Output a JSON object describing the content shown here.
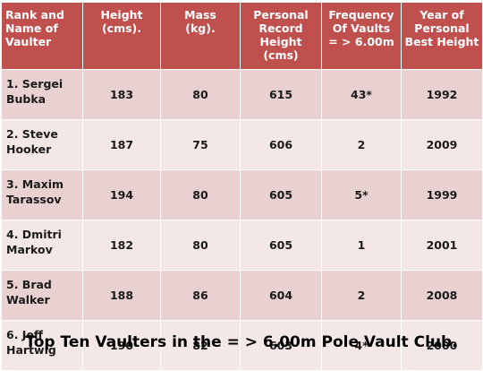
{
  "table": {
    "headers": [
      [
        "Rank and",
        "Name of",
        "Vaulter"
      ],
      [
        "Height",
        "(cms)."
      ],
      [
        "Mass",
        "(kg)."
      ],
      [
        "Personal",
        "Record",
        "Height",
        "(cms)"
      ],
      [
        "Frequency",
        "Of Vaults",
        "= > 6.00m"
      ],
      [
        "Year of",
        "Personal",
        "Best Height"
      ]
    ],
    "rows": [
      {
        "name": [
          "1.  Sergei",
          "Bubka"
        ],
        "height": "183",
        "mass": "80",
        "record": "615",
        "frequency": "43*",
        "year": "1992"
      },
      {
        "name": [
          "2. Steve",
          "Hooker"
        ],
        "height": "187",
        "mass": "75",
        "record": "606",
        "frequency": "2",
        "year": "2009"
      },
      {
        "name": [
          "3. Maxim",
          "Tarassov"
        ],
        "height": "194",
        "mass": "80",
        "record": "605",
        "frequency": "5*",
        "year": "1999"
      },
      {
        "name": [
          "4. Dmitri",
          "Markov"
        ],
        "height": "182",
        "mass": "80",
        "record": "605",
        "frequency": "1",
        "year": "2001"
      },
      {
        "name": [
          "5. Brad",
          "Walker"
        ],
        "height": "188",
        "mass": "86",
        "record": "604",
        "frequency": "2",
        "year": "2008"
      },
      {
        "name": [
          "6. Jeff",
          "Hartwig"
        ],
        "height": "190",
        "mass": "82",
        "record": "603",
        "frequency": "4*",
        "year": "2000"
      }
    ]
  },
  "caption": "Top Ten Vaulters in the = > 6.00m Pole Vault Club.",
  "colors": {
    "header_bg": "#c0504d",
    "row_odd_bg": "#e8d1d0",
    "row_even_bg": "#f4e8e7"
  }
}
